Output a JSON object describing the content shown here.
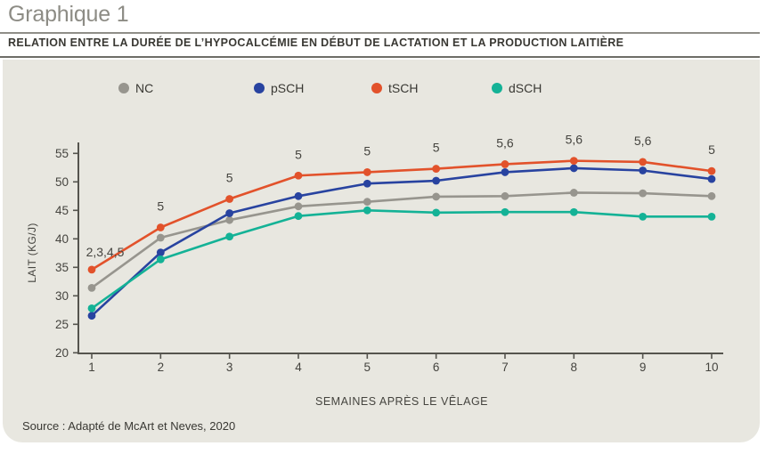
{
  "header": {
    "title": "Graphique 1",
    "subtitle": "RELATION ENTRE LA DURÉE DE L’HYPOCALCÉMIE EN DÉBUT DE LACTATION ET LA PRODUCTION LAITIÈRE"
  },
  "source": "Source : Adapté de McArt et Neves, 2020",
  "colors": {
    "panel_bg": "#e8e7e0",
    "axis": "#55544e",
    "text": "#45443f",
    "title": "#8d8c85",
    "nc": "#97958e",
    "psch": "#2843a0",
    "tsch": "#e2522b",
    "dsch": "#14b296"
  },
  "chart_data": {
    "type": "line",
    "x": [
      1,
      2,
      3,
      4,
      5,
      6,
      7,
      8,
      9,
      10
    ],
    "xlabel": "SEMAINES APRÈS LE VÊLAGE",
    "ylabel": "LAIT (KG/J)",
    "ylim": [
      20,
      55
    ],
    "yticks": [
      20,
      25,
      30,
      35,
      40,
      45,
      50,
      55
    ],
    "grid": false,
    "legend_position": "top",
    "series": [
      {
        "name": "NC",
        "color": "#97958e",
        "values": [
          31.4,
          40.2,
          43.3,
          45.7,
          46.5,
          47.4,
          47.5,
          48.1,
          48.0,
          47.5
        ]
      },
      {
        "name": "pSCH",
        "color": "#2843a0",
        "values": [
          26.5,
          37.6,
          44.5,
          47.5,
          49.7,
          50.2,
          51.7,
          52.4,
          52.0,
          50.5
        ]
      },
      {
        "name": "tSCH",
        "color": "#e2522b",
        "values": [
          34.6,
          42.0,
          47.0,
          51.1,
          51.7,
          52.3,
          53.1,
          53.7,
          53.5,
          51.9
        ]
      },
      {
        "name": "dSCH",
        "color": "#14b296",
        "values": [
          27.8,
          36.4,
          40.4,
          44.0,
          45.0,
          44.6,
          44.7,
          44.7,
          43.9,
          43.9
        ]
      }
    ],
    "annotations": [
      "2,3,4,5",
      "5",
      "5",
      "5",
      "5",
      "5",
      "5,6",
      "5,6",
      "5,6",
      "5"
    ]
  }
}
